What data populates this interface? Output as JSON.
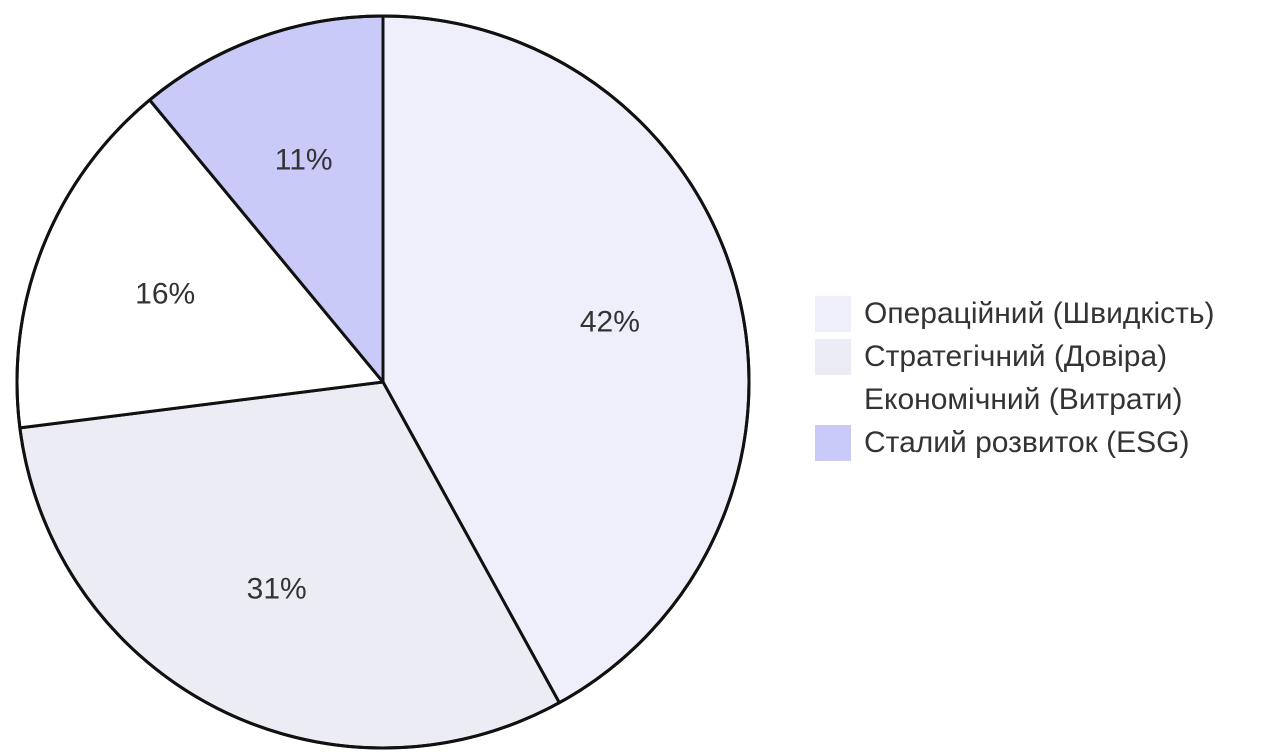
{
  "chart_data": {
    "type": "pie",
    "title": "",
    "start_angle_deg": 0,
    "direction": "clockwise",
    "legend_position": "right",
    "slices": [
      {
        "name": "Операційний (Швидкість)",
        "value": 42,
        "label": "42%",
        "color": "#efeffb"
      },
      {
        "name": "Стратегічний (Довіра)",
        "value": 31,
        "label": "31%",
        "color": "#ececf4"
      },
      {
        "name": "Економічний (Витрати)",
        "value": 16,
        "label": "16%",
        "color": "#ffffff"
      },
      {
        "name": "Сталий розвиток (ESG)",
        "value": 11,
        "label": "11%",
        "color": "#cacaf8"
      }
    ]
  }
}
